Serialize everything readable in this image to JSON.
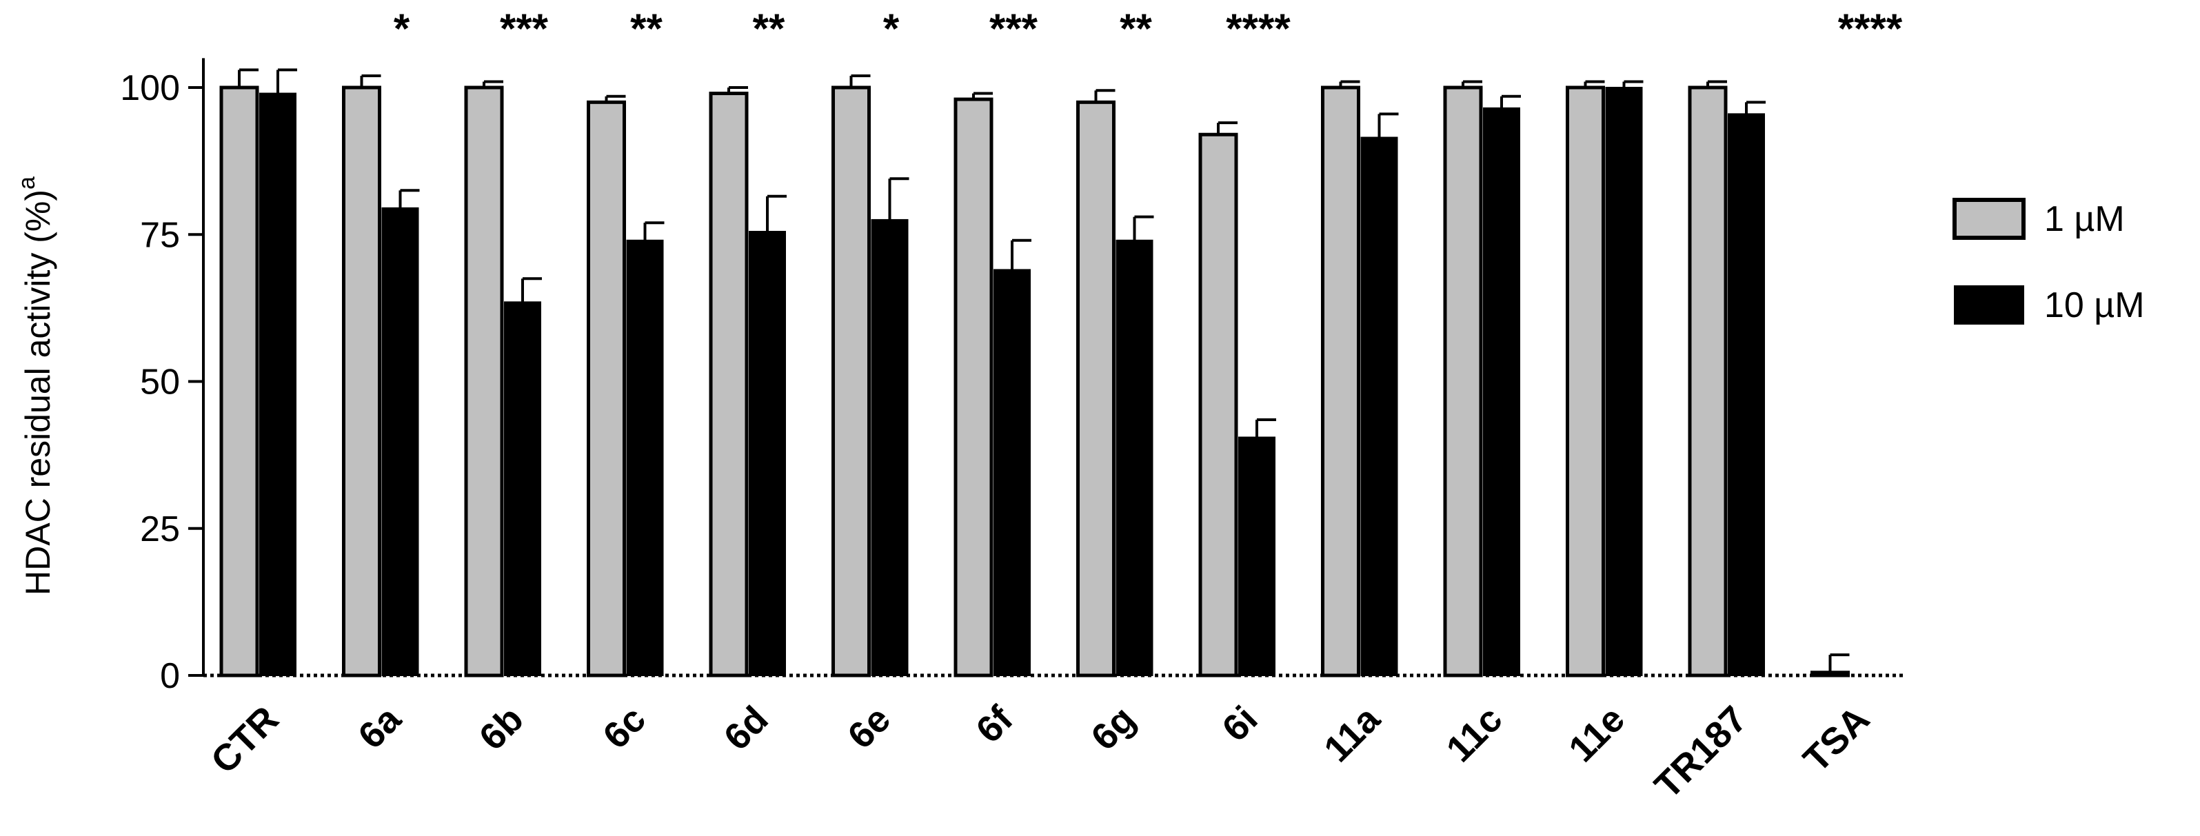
{
  "chart_data": {
    "type": "bar",
    "title": "",
    "xlabel": "",
    "ylabel": "HDAC residual activity (%)",
    "ylabel_superscript": "a",
    "ylim": [
      0,
      105
    ],
    "yticks": [
      0,
      25,
      50,
      75,
      100
    ],
    "categories": [
      "CTR",
      "6a",
      "6b",
      "6c",
      "6d",
      "6e",
      "6f",
      "6g",
      "6i",
      "11a",
      "11c",
      "11e",
      "TR187",
      "TSA"
    ],
    "series": [
      {
        "name": "1 µM",
        "color": "#c0c0c0",
        "values": [
          100,
          100,
          100,
          97.5,
          99,
          100,
          98,
          97.5,
          92,
          100,
          100,
          100,
          100,
          0.5
        ],
        "errors": [
          3,
          2,
          1,
          1,
          1,
          2,
          1,
          2,
          2,
          1,
          1,
          1,
          1,
          3
        ]
      },
      {
        "name": "10 µM",
        "color": "#000000",
        "values": [
          99,
          79.5,
          63.5,
          74,
          75.5,
          77.5,
          69,
          74,
          40.5,
          91.5,
          96.5,
          100,
          95.5,
          0
        ],
        "errors": [
          4,
          3,
          4,
          3,
          6,
          7,
          5,
          4,
          3,
          4,
          2,
          1,
          2,
          0
        ]
      }
    ],
    "significance": [
      "",
      "*",
      "***",
      "**",
      "**",
      "*",
      "***",
      "**",
      "****",
      "",
      "",
      "",
      "",
      "****"
    ],
    "legend_position": "right",
    "grid": false
  }
}
